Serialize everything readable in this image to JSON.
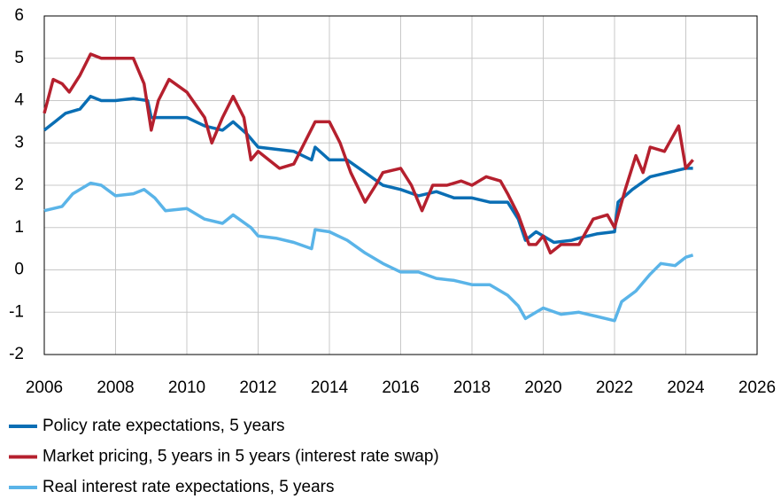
{
  "chart_data": {
    "type": "line",
    "xlim": [
      2006,
      2026
    ],
    "xticks": [
      2006,
      2008,
      2010,
      2012,
      2014,
      2016,
      2018,
      2020,
      2022,
      2024,
      2026
    ],
    "ylim": [
      -2,
      6
    ],
    "yticks": [
      -2,
      -1,
      0,
      1,
      2,
      3,
      4,
      5,
      6
    ],
    "grid": true,
    "series": [
      {
        "name": "Policy rate expectations, 5 years",
        "color": "#0a6eb4",
        "x": [
          2006,
          2006.3,
          2006.6,
          2007,
          2007.3,
          2007.6,
          2008,
          2008.5,
          2008.9,
          2009,
          2009.5,
          2010,
          2010.5,
          2011,
          2011.3,
          2011.7,
          2012,
          2012.5,
          2013,
          2013.5,
          2013.6,
          2014,
          2014.5,
          2015,
          2015.5,
          2016,
          2016.5,
          2017,
          2017.5,
          2018,
          2018.5,
          2019,
          2019.3,
          2019.5,
          2019.8,
          2020,
          2020.3,
          2020.8,
          2021,
          2021.5,
          2022,
          2022.1,
          2022.5,
          2023,
          2023.5,
          2024,
          2024.2
        ],
        "values": [
          3.3,
          3.5,
          3.7,
          3.8,
          4.1,
          4.0,
          4.0,
          4.05,
          4.0,
          3.6,
          3.6,
          3.6,
          3.4,
          3.3,
          3.5,
          3.2,
          2.9,
          2.85,
          2.8,
          2.6,
          2.9,
          2.6,
          2.6,
          2.3,
          2.0,
          1.9,
          1.75,
          1.85,
          1.7,
          1.7,
          1.6,
          1.6,
          1.2,
          0.7,
          0.9,
          0.8,
          0.65,
          0.7,
          0.75,
          0.85,
          0.9,
          1.6,
          1.9,
          2.2,
          2.3,
          2.4,
          2.4
        ]
      },
      {
        "name": "Market pricing, 5 years in 5 years (interest rate swap)",
        "color": "#b5202e",
        "x": [
          2006,
          2006.25,
          2006.5,
          2006.7,
          2007,
          2007.3,
          2007.6,
          2008,
          2008.5,
          2008.8,
          2009,
          2009.2,
          2009.5,
          2010,
          2010.5,
          2010.7,
          2011,
          2011.3,
          2011.6,
          2011.8,
          2012,
          2012.3,
          2012.6,
          2013,
          2013.3,
          2013.6,
          2014,
          2014.3,
          2014.6,
          2015,
          2015.3,
          2015.5,
          2016,
          2016.3,
          2016.6,
          2016.9,
          2017.3,
          2017.7,
          2018,
          2018.4,
          2018.8,
          2019,
          2019.3,
          2019.6,
          2019.8,
          2020,
          2020.2,
          2020.5,
          2021,
          2021.4,
          2021.8,
          2022,
          2022.3,
          2022.6,
          2022.8,
          2023,
          2023.4,
          2023.8,
          2024,
          2024.2
        ],
        "values": [
          3.7,
          4.5,
          4.4,
          4.2,
          4.6,
          5.1,
          5.0,
          5.0,
          5.0,
          4.4,
          3.3,
          4.0,
          4.5,
          4.2,
          3.6,
          3.0,
          3.6,
          4.1,
          3.6,
          2.6,
          2.8,
          2.6,
          2.4,
          2.5,
          3.0,
          3.5,
          3.5,
          3.0,
          2.3,
          1.6,
          2.0,
          2.3,
          2.4,
          2.0,
          1.4,
          2.0,
          2.0,
          2.1,
          2.0,
          2.2,
          2.1,
          1.8,
          1.3,
          0.6,
          0.6,
          0.8,
          0.4,
          0.6,
          0.6,
          1.2,
          1.3,
          1.0,
          1.9,
          2.7,
          2.3,
          2.9,
          2.8,
          3.4,
          2.4,
          2.6
        ]
      },
      {
        "name": "Real interest rate expectations, 5 years",
        "color": "#5ab4e8",
        "x": [
          2006,
          2006.5,
          2006.8,
          2007,
          2007.3,
          2007.6,
          2008,
          2008.5,
          2008.8,
          2009.1,
          2009.4,
          2010,
          2010.5,
          2011,
          2011.3,
          2011.8,
          2012,
          2012.5,
          2013,
          2013.5,
          2013.6,
          2014,
          2014.5,
          2015,
          2015.5,
          2016,
          2016.5,
          2017,
          2017.5,
          2018,
          2018.5,
          2019,
          2019.3,
          2019.5,
          2019.8,
          2020,
          2020.5,
          2021,
          2021.5,
          2022,
          2022.2,
          2022.6,
          2023,
          2023.3,
          2023.7,
          2024,
          2024.2
        ],
        "values": [
          1.4,
          1.5,
          1.8,
          1.9,
          2.05,
          2.0,
          1.75,
          1.8,
          1.9,
          1.7,
          1.4,
          1.45,
          1.2,
          1.1,
          1.3,
          1.0,
          0.8,
          0.75,
          0.65,
          0.5,
          0.95,
          0.9,
          0.7,
          0.4,
          0.15,
          -0.05,
          -0.05,
          -0.2,
          -0.25,
          -0.35,
          -0.35,
          -0.6,
          -0.85,
          -1.15,
          -1.0,
          -0.9,
          -1.05,
          -1.0,
          -1.1,
          -1.2,
          -0.75,
          -0.5,
          -0.1,
          0.15,
          0.1,
          0.3,
          0.35
        ]
      }
    ]
  }
}
